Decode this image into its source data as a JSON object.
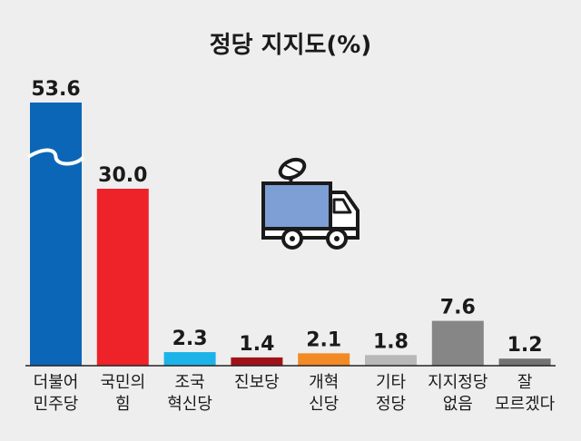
{
  "chart_data": {
    "type": "bar",
    "title": "정당 지지도(%)",
    "categories": [
      [
        "더불어",
        "민주당"
      ],
      [
        "국민의",
        "힘"
      ],
      [
        "조국",
        "혁신당"
      ],
      [
        "진보당"
      ],
      [
        "개혁",
        "신당"
      ],
      [
        "기타",
        "정당"
      ],
      [
        "지지정당",
        "없음"
      ],
      [
        "잘",
        "모르겠다"
      ]
    ],
    "values": [
      53.6,
      30.0,
      2.3,
      1.4,
      2.1,
      1.8,
      7.6,
      1.2
    ],
    "value_labels": [
      "53.6",
      "30.0",
      "2.3",
      "1.4",
      "2.1",
      "1.8",
      "7.6",
      "1.2"
    ],
    "colors": [
      "#0b66b8",
      "#ee2229",
      "#1cb4e8",
      "#a01218",
      "#f28a25",
      "#b8b8b8",
      "#868686",
      "#737373"
    ],
    "broken_axis_bar_index": 0,
    "xlabel": "",
    "ylabel": "",
    "grid": false,
    "legend": "none",
    "decoration_icon": "broadcast-truck-icon"
  }
}
